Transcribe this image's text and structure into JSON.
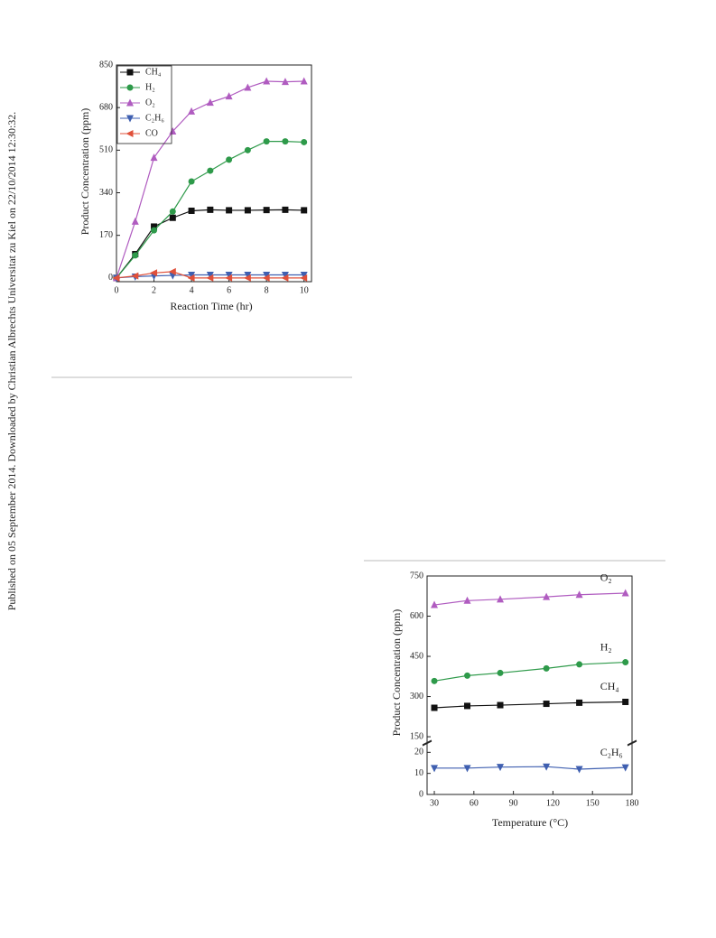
{
  "side_note": "Published on 05 September 2014. Downloaded by Christian Albrechts Universitat zu Kiel on 22/10/2014 12:30:32.",
  "chart_data": [
    {
      "type": "line",
      "xlabel": "Reaction Time (hr)",
      "ylabel": "Product Concentration (ppm)",
      "xlim": [
        0,
        10.4
      ],
      "ylim": [
        -15,
        850
      ],
      "xticks": [
        0,
        2,
        4,
        6,
        8,
        10
      ],
      "yticks": [
        0,
        170,
        340,
        510,
        680,
        850
      ],
      "legend": "upper left",
      "x": [
        0,
        1,
        2,
        3,
        4,
        5,
        6,
        7,
        8,
        9,
        10
      ],
      "series": [
        {
          "name": "CH₄",
          "color": "#111111",
          "marker": "square",
          "values": [
            0,
            95,
            205,
            240,
            268,
            272,
            270,
            270,
            271,
            272,
            270
          ]
        },
        {
          "name": "H₂",
          "color": "#2e9a4a",
          "marker": "circle",
          "values": [
            0,
            90,
            190,
            265,
            385,
            428,
            472,
            510,
            545,
            545,
            542
          ]
        },
        {
          "name": "O₂",
          "color": "#b05cc0",
          "marker": "triangle",
          "values": [
            0,
            225,
            480,
            585,
            665,
            700,
            725,
            760,
            785,
            783,
            785
          ]
        },
        {
          "name": "C₂H₆",
          "color": "#3f5fb0",
          "marker": "triangle-down",
          "values": [
            0,
            5,
            8,
            10,
            12,
            12,
            12,
            12,
            12,
            12,
            12
          ]
        },
        {
          "name": "CO",
          "color": "#e0503a",
          "marker": "triangle-left",
          "values": [
            0,
            8,
            20,
            25,
            0,
            0,
            0,
            0,
            0,
            0,
            0
          ]
        }
      ]
    },
    {
      "type": "line",
      "xlabel": "Temperature (°C)",
      "ylabel": "Product Concentration (ppm)",
      "xlim": [
        24.5,
        180
      ],
      "ylim": [
        130,
        750
      ],
      "y2lim": [
        0,
        24
      ],
      "xticks": [
        30,
        60,
        90,
        120,
        150,
        180
      ],
      "yticks": [
        150,
        300,
        450,
        600,
        750
      ],
      "y2ticks": [
        0,
        10,
        20
      ],
      "x": [
        30,
        55,
        80,
        115,
        140,
        175
      ],
      "series": [
        {
          "name": "O₂",
          "color": "#b05cc0",
          "marker": "triangle",
          "values": [
            642,
            658,
            663,
            672,
            680,
            686
          ]
        },
        {
          "name": "H₂",
          "color": "#2e9a4a",
          "marker": "circle",
          "values": [
            358,
            378,
            388,
            405,
            420,
            428
          ]
        },
        {
          "name": "CH₄",
          "color": "#111111",
          "marker": "square",
          "values": [
            258,
            265,
            268,
            273,
            277,
            280
          ]
        },
        {
          "name": "C₂H₆",
          "color": "#3f5fb0",
          "marker": "triangle-down",
          "axis": "y2",
          "values": [
            12.5,
            12.5,
            13,
            13.2,
            12,
            12.8
          ]
        }
      ]
    }
  ]
}
